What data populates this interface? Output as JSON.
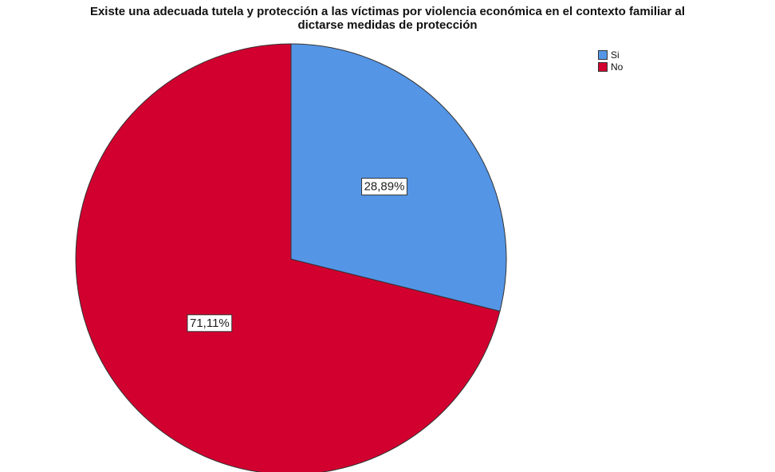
{
  "chart_data": {
    "type": "pie",
    "title_lines": [
      "Existe una adecuada tutela y protección a las víctimas por violencia económica en el contexto familiar al",
      "dictarse medidas de protección"
    ],
    "categories": [
      "Si",
      "No"
    ],
    "values": [
      28.89,
      71.11
    ],
    "labels": [
      "28,89%",
      "71,11%"
    ],
    "colors": [
      "#5495E6",
      "#D2002F"
    ],
    "start_angle_deg": 0,
    "direction": "clockwise",
    "legend_position": "top-right"
  }
}
